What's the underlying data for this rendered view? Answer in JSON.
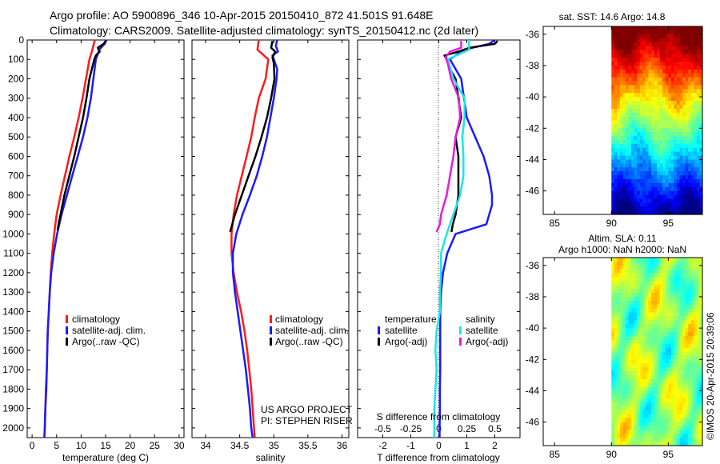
{
  "header": {
    "line1": "Argo profile: AO 5900896_346 10-Apr-2015 20150410_872 41.501S 91.648E",
    "line2": "Climatology: CARS2009. Satellite-adjusted climatology: synTS_20150412.nc (2d later)"
  },
  "colors": {
    "climatology": "#ff1a1a",
    "satellite": "#1a1aff",
    "argo": "#000000",
    "cyan": "#19e6e6",
    "magenta": "#e619e6"
  },
  "chart_data": [
    {
      "type": "line",
      "id": "temperature",
      "xlabel": "temperature (deg C)",
      "xlim": [
        -1,
        31
      ],
      "xticks": [
        0,
        5,
        10,
        15,
        20,
        25,
        30
      ],
      "ylim": [
        0,
        2050
      ],
      "yticks": [
        0,
        100,
        200,
        300,
        400,
        500,
        600,
        700,
        800,
        900,
        1000,
        1100,
        1200,
        1300,
        1400,
        1500,
        1600,
        1700,
        1800,
        1900,
        2000
      ],
      "legend": [
        {
          "label": "climatology",
          "color": "climatology"
        },
        {
          "label": "satellite-adj. clim.",
          "color": "satellite"
        },
        {
          "label": "Argo(..raw -QC)",
          "color": "argo"
        }
      ],
      "series": [
        {
          "name": "climatology",
          "color": "climatology",
          "depth": [
            0,
            50,
            100,
            200,
            300,
            400,
            500,
            600,
            700,
            800,
            900,
            1000,
            1100,
            1200,
            1300,
            1400,
            1500,
            1600,
            1700,
            1800,
            1900,
            2000,
            2050
          ],
          "values": [
            12.8,
            12.3,
            11.7,
            11.0,
            10.3,
            9.5,
            8.6,
            7.6,
            6.7,
            5.8,
            5.0,
            4.5,
            4.1,
            3.8,
            3.6,
            3.4,
            3.2,
            3.1,
            3.0,
            2.8,
            2.7,
            2.6,
            2.5
          ]
        },
        {
          "name": "satellite-adj. clim.",
          "color": "satellite",
          "depth": [
            0,
            20,
            50,
            80,
            100,
            200,
            300,
            400,
            500,
            600,
            700,
            800,
            900,
            1000,
            1100,
            1200,
            1300,
            1400,
            1500,
            1600,
            1700,
            1800,
            1900,
            2000,
            2050
          ],
          "values": [
            15.2,
            14.8,
            13.7,
            13.3,
            13.0,
            12.5,
            12.0,
            11.3,
            10.4,
            9.3,
            8.2,
            7.1,
            6.0,
            5.1,
            4.4,
            3.9,
            3.6,
            3.4,
            3.2,
            3.1,
            3.0,
            2.9,
            2.7,
            2.6,
            2.5
          ]
        },
        {
          "name": "Argo(..raw -QC)",
          "color": "argo",
          "depth": [
            5,
            20,
            40,
            60,
            80,
            100,
            150,
            200,
            300,
            400,
            500,
            600,
            700,
            800,
            900,
            950,
            980
          ],
          "values": [
            15.0,
            14.6,
            13.4,
            13.8,
            13.0,
            12.7,
            12.2,
            11.7,
            11.1,
            10.4,
            9.5,
            8.6,
            7.6,
            6.6,
            5.8,
            5.4,
            5.2
          ]
        }
      ]
    },
    {
      "type": "line",
      "id": "salinity",
      "xlabel": "salinity",
      "xlim": [
        33.8,
        36.1
      ],
      "xticks": [
        34,
        34.5,
        35,
        35.5,
        36
      ],
      "xticklabels": [
        "34",
        "34.5",
        "35",
        "35.5",
        "36"
      ],
      "ylim": [
        0,
        2050
      ],
      "legend": [
        {
          "label": "climatology",
          "color": "climatology"
        },
        {
          "label": "satellite-adj. clim.",
          "color": "satellite"
        },
        {
          "label": "Argo(..raw -QC)",
          "color": "argo"
        }
      ],
      "series": [
        {
          "name": "climatology",
          "color": "climatology",
          "depth": [
            0,
            50,
            100,
            150,
            200,
            300,
            400,
            500,
            600,
            700,
            800,
            900,
            1000,
            1100,
            1200,
            1300,
            1400,
            1500,
            1600,
            1700,
            1800,
            1900,
            2000,
            2050
          ],
          "values": [
            34.78,
            34.76,
            34.92,
            34.9,
            34.88,
            34.78,
            34.72,
            34.67,
            34.6,
            34.53,
            34.46,
            34.41,
            34.38,
            34.38,
            34.41,
            34.46,
            34.52,
            34.57,
            34.61,
            34.64,
            34.67,
            34.69,
            34.71,
            34.72
          ]
        },
        {
          "name": "satellite-adj. clim.",
          "color": "satellite",
          "depth": [
            0,
            30,
            60,
            80,
            100,
            150,
            200,
            300,
            400,
            500,
            600,
            700,
            800,
            900,
            1000,
            1100,
            1200,
            1300,
            1400,
            1500,
            1600,
            1700,
            1800,
            1900,
            2000,
            2050
          ],
          "values": [
            35.05,
            35.03,
            35.06,
            34.98,
            35.0,
            35.05,
            35.04,
            35.0,
            34.95,
            34.9,
            34.83,
            34.75,
            34.65,
            34.54,
            34.45,
            34.4,
            34.4,
            34.43,
            34.47,
            34.51,
            34.55,
            34.59,
            34.62,
            34.65,
            34.67,
            34.69
          ]
        },
        {
          "name": "Argo(..raw -QC)",
          "color": "argo",
          "depth": [
            5,
            40,
            60,
            90,
            120,
            200,
            300,
            400,
            500,
            600,
            700,
            800,
            900,
            950,
            990
          ],
          "values": [
            34.98,
            34.96,
            35.02,
            34.98,
            35.0,
            35.01,
            34.96,
            34.9,
            34.82,
            34.73,
            34.63,
            34.53,
            34.43,
            34.39,
            34.36
          ]
        }
      ],
      "annotations": [
        "US ARGO PROJECT",
        "PI: STEPHEN RISER"
      ]
    },
    {
      "type": "line",
      "id": "difference",
      "xlabel": "T difference from climatology",
      "xlim": [
        -2.9,
        2.9
      ],
      "xticks": [
        -2,
        -1,
        0,
        1,
        2
      ],
      "top_xlabel": "S difference from climatology",
      "top_xticks": [
        -0.5,
        -0.25,
        0,
        0.25,
        0.5
      ],
      "top_xticklabels": [
        "-0.5",
        "-0.25",
        "0",
        "0.25",
        "0.5"
      ],
      "ylim": [
        0,
        2050
      ],
      "legend_groups": [
        {
          "title": "temperature",
          "items": [
            {
              "label": "satellite",
              "color": "satellite"
            },
            {
              "label": "Argo(-adj)",
              "color": "argo"
            }
          ]
        },
        {
          "title": "salinity",
          "items": [
            {
              "label": "satellite",
              "color": "cyan"
            },
            {
              "label": "Argo(-adj)",
              "color": "magenta"
            }
          ]
        }
      ],
      "series": [
        {
          "name": "temperature satellite",
          "color": "satellite",
          "depth": [
            0,
            20,
            50,
            80,
            100,
            150,
            200,
            300,
            400,
            500,
            600,
            650,
            700,
            750,
            800,
            850,
            900,
            950,
            1000,
            1100,
            1200,
            1300,
            1400,
            1500,
            1600,
            1700,
            1800,
            1900,
            2000,
            2050
          ],
          "values": [
            2.0,
            1.8,
            0.9,
            0.6,
            0.4,
            0.6,
            0.8,
            0.9,
            1.0,
            1.3,
            1.6,
            1.7,
            1.8,
            1.85,
            1.9,
            1.9,
            1.8,
            1.7,
            0.6,
            0.3,
            0.15,
            0.08,
            0.05,
            0.05,
            0.05,
            0.05,
            0.04,
            0.04,
            0.03,
            0.03
          ]
        },
        {
          "name": "temperature Argo(-adj)",
          "color": "argo",
          "depth": [
            5,
            20,
            40,
            60,
            80,
            100,
            150,
            200,
            300,
            400,
            500,
            600,
            700,
            800,
            900,
            950,
            990
          ],
          "values": [
            2.1,
            2.0,
            1.1,
            0.7,
            0.2,
            0.3,
            0.4,
            0.6,
            0.7,
            0.8,
            0.6,
            0.7,
            0.7,
            0.7,
            0.6,
            0.5,
            0.45
          ]
        },
        {
          "name": "salinity satellite",
          "color": "cyan",
          "depth": [
            0,
            50,
            100,
            200,
            300,
            400,
            500,
            600,
            700,
            800,
            900,
            1000,
            1100,
            1200,
            1300,
            1400,
            1500,
            1600,
            1700,
            1800,
            1900,
            2000,
            2050
          ],
          "values": [
            0.27,
            0.27,
            0.08,
            0.13,
            0.23,
            0.23,
            0.21,
            0.22,
            0.22,
            0.19,
            0.13,
            0.07,
            0.02,
            0.02,
            0.01,
            0.01,
            -0.02,
            -0.03,
            -0.02,
            -0.03,
            -0.04,
            -0.04,
            -0.04
          ]
        },
        {
          "name": "salinity Argo(-adj)",
          "color": "magenta",
          "depth": [
            5,
            40,
            60,
            90,
            120,
            200,
            300,
            400,
            500,
            600,
            700,
            800,
            900,
            950,
            990
          ],
          "values": [
            0.2,
            0.2,
            0.1,
            0.06,
            0.08,
            0.11,
            0.18,
            0.19,
            0.15,
            0.13,
            0.1,
            0.07,
            0.02,
            0.01,
            -0.02
          ]
        }
      ]
    },
    {
      "type": "heatmap",
      "id": "sst-map",
      "title": "sat. SST: 14.6 Argo: 14.8",
      "xlim": [
        84,
        98
      ],
      "xticks": [
        85,
        90,
        95
      ],
      "ylim": [
        -47.5,
        -35.5
      ],
      "yticks": [
        -36,
        -38,
        -40,
        -42,
        -44,
        -46
      ],
      "data_extent_lon": [
        90,
        98
      ],
      "colorscale": "jet"
    },
    {
      "type": "heatmap",
      "id": "sla-map",
      "title_line1": "Altim. SLA: 0.11",
      "title_line2": "Argo h1000: NaN h2000: NaN",
      "xlim": [
        84,
        98
      ],
      "xticks": [
        85,
        90,
        95
      ],
      "ylim": [
        -47.5,
        -35.5
      ],
      "yticks": [
        -36,
        -38,
        -40,
        -42,
        -44,
        -46
      ],
      "data_extent_lon": [
        90,
        98
      ],
      "colorscale": "jet"
    }
  ],
  "footer_stamp": "©IMOS 20-Apr-2015 20:39:06"
}
